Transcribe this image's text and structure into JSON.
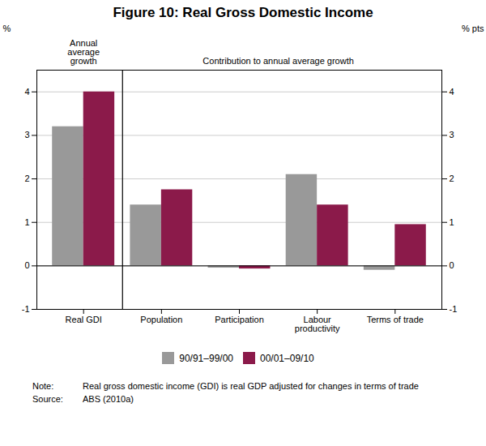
{
  "chart_data": {
    "type": "bar",
    "title": "Figure 10: Real Gross Domestic Income",
    "categories": [
      "Real GDI",
      "Population",
      "Participation",
      "Labour\nproductivity",
      "Terms of trade"
    ],
    "series": [
      {
        "name": "90/91–99/00",
        "color": "#999999",
        "values": [
          3.2,
          1.4,
          -0.05,
          2.1,
          -0.1
        ]
      },
      {
        "name": "00/01–09/10",
        "color": "#8B1A4A",
        "values": [
          4.0,
          1.75,
          -0.07,
          1.4,
          0.95
        ]
      }
    ],
    "ylim": [
      -1,
      4.5
    ],
    "yticks": [
      -1,
      0,
      1,
      2,
      3,
      4
    ],
    "ylabel": "%",
    "y2lim": [
      -1,
      4.5
    ],
    "y2ticks": [
      -1,
      0,
      1,
      2,
      3,
      4
    ],
    "y2label": "% pts",
    "annotations": [
      "Annual\naverage\ngrowth",
      "Contribution to annual average growth"
    ],
    "notes": [
      {
        "label": "Note:",
        "text": "Real gross domestic income (GDI) is real GDP adjusted for changes in terms of trade"
      },
      {
        "label": "Source:",
        "text": "ABS (2010a)"
      }
    ],
    "grid": true,
    "legend": "bottom"
  }
}
